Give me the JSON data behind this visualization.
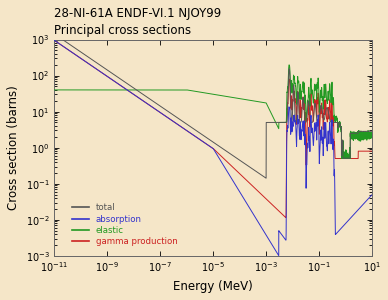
{
  "title_line1": "28-NI-61A ENDF-VI.1 NJOY99",
  "title_line2": "Principal cross sections",
  "xlabel": "Energy (MeV)",
  "ylabel": "Cross section (barns)",
  "background_color": "#f5e6c8",
  "axes_bg_color": "#f5e6c8",
  "xlim_log": [
    -11,
    1
  ],
  "ylim_log": [
    -3,
    3
  ],
  "legend_labels": [
    "total",
    "absorption",
    "elastic",
    "gamma production"
  ],
  "legend_colors": [
    "#555555",
    "#3333cc",
    "#229922",
    "#cc2222"
  ],
  "title_fontsize": 8.5,
  "axes_label_fontsize": 8.5,
  "tick_fontsize": 7
}
